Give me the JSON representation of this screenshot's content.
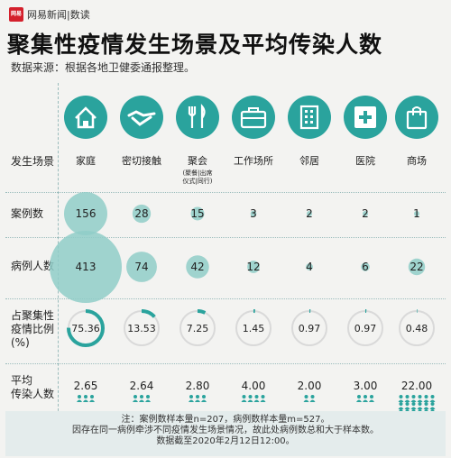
{
  "brand": {
    "logo_text": "网易",
    "name": "网易新闻|数读"
  },
  "title": "聚集性疫情发生场景及平均传染人数",
  "source": "数据来源：根据各地卫健委通报整理。",
  "row_labels": {
    "scene": "发生场景",
    "cases": "案例数",
    "patients": "病例人数",
    "share": [
      "占聚集性",
      "疫情比例",
      "(%)"
    ],
    "avg": [
      "平均",
      "传染人数"
    ]
  },
  "colors": {
    "accent": "#2aa39d",
    "light": "#8fcdc8",
    "background": "#f3f3f1"
  },
  "icons": [
    "house-icon",
    "handshake-icon",
    "fork-knife-icon",
    "briefcase-icon",
    "building-icon",
    "medical-cross-icon",
    "shopping-bag-icon"
  ],
  "categories": [
    {
      "name": "家庭",
      "sub": ""
    },
    {
      "name": "密切接触",
      "sub": ""
    },
    {
      "name": "聚会",
      "sub": "(聚餐|出席仪式|同行)"
    },
    {
      "name": "工作场所",
      "sub": ""
    },
    {
      "name": "邻居",
      "sub": ""
    },
    {
      "name": "医院",
      "sub": ""
    },
    {
      "name": "商场",
      "sub": ""
    }
  ],
  "chart_data": {
    "type": "table",
    "categories": [
      "家庭",
      "密切接触",
      "聚会",
      "工作场所",
      "邻居",
      "医院",
      "商场"
    ],
    "series": [
      {
        "name": "案例数",
        "values": [
          156,
          28,
          15,
          3,
          2,
          2,
          1
        ]
      },
      {
        "name": "病例人数",
        "values": [
          413,
          74,
          42,
          12,
          4,
          6,
          22
        ]
      },
      {
        "name": "占聚集性疫情比例(%)",
        "values": [
          75.36,
          13.53,
          7.25,
          1.45,
          0.97,
          0.97,
          0.48
        ]
      },
      {
        "name": "平均传染人数",
        "values": [
          2.65,
          2.64,
          2.8,
          4.0,
          2.0,
          3.0,
          22.0
        ]
      }
    ],
    "display": {
      "cases": [
        "156",
        "28",
        "15",
        "3",
        "2",
        "2",
        "1"
      ],
      "patients": [
        "413",
        "74",
        "42",
        "12",
        "4",
        "6",
        "22"
      ],
      "share": [
        "75.36",
        "13.53",
        "7.25",
        "1.45",
        "0.97",
        "0.97",
        "0.48"
      ],
      "avg": [
        "2.65",
        "2.64",
        "2.80",
        "4.00",
        "2.00",
        "3.00",
        "22.00"
      ]
    }
  },
  "note": [
    "注：案例数样本量n=207，病例数样本量m=527。",
    "因存在同一病例牵涉不同疫情发生场景情况，故此处病例数总和大于样本数。",
    "数据截至2020年2月12日12:00。"
  ]
}
